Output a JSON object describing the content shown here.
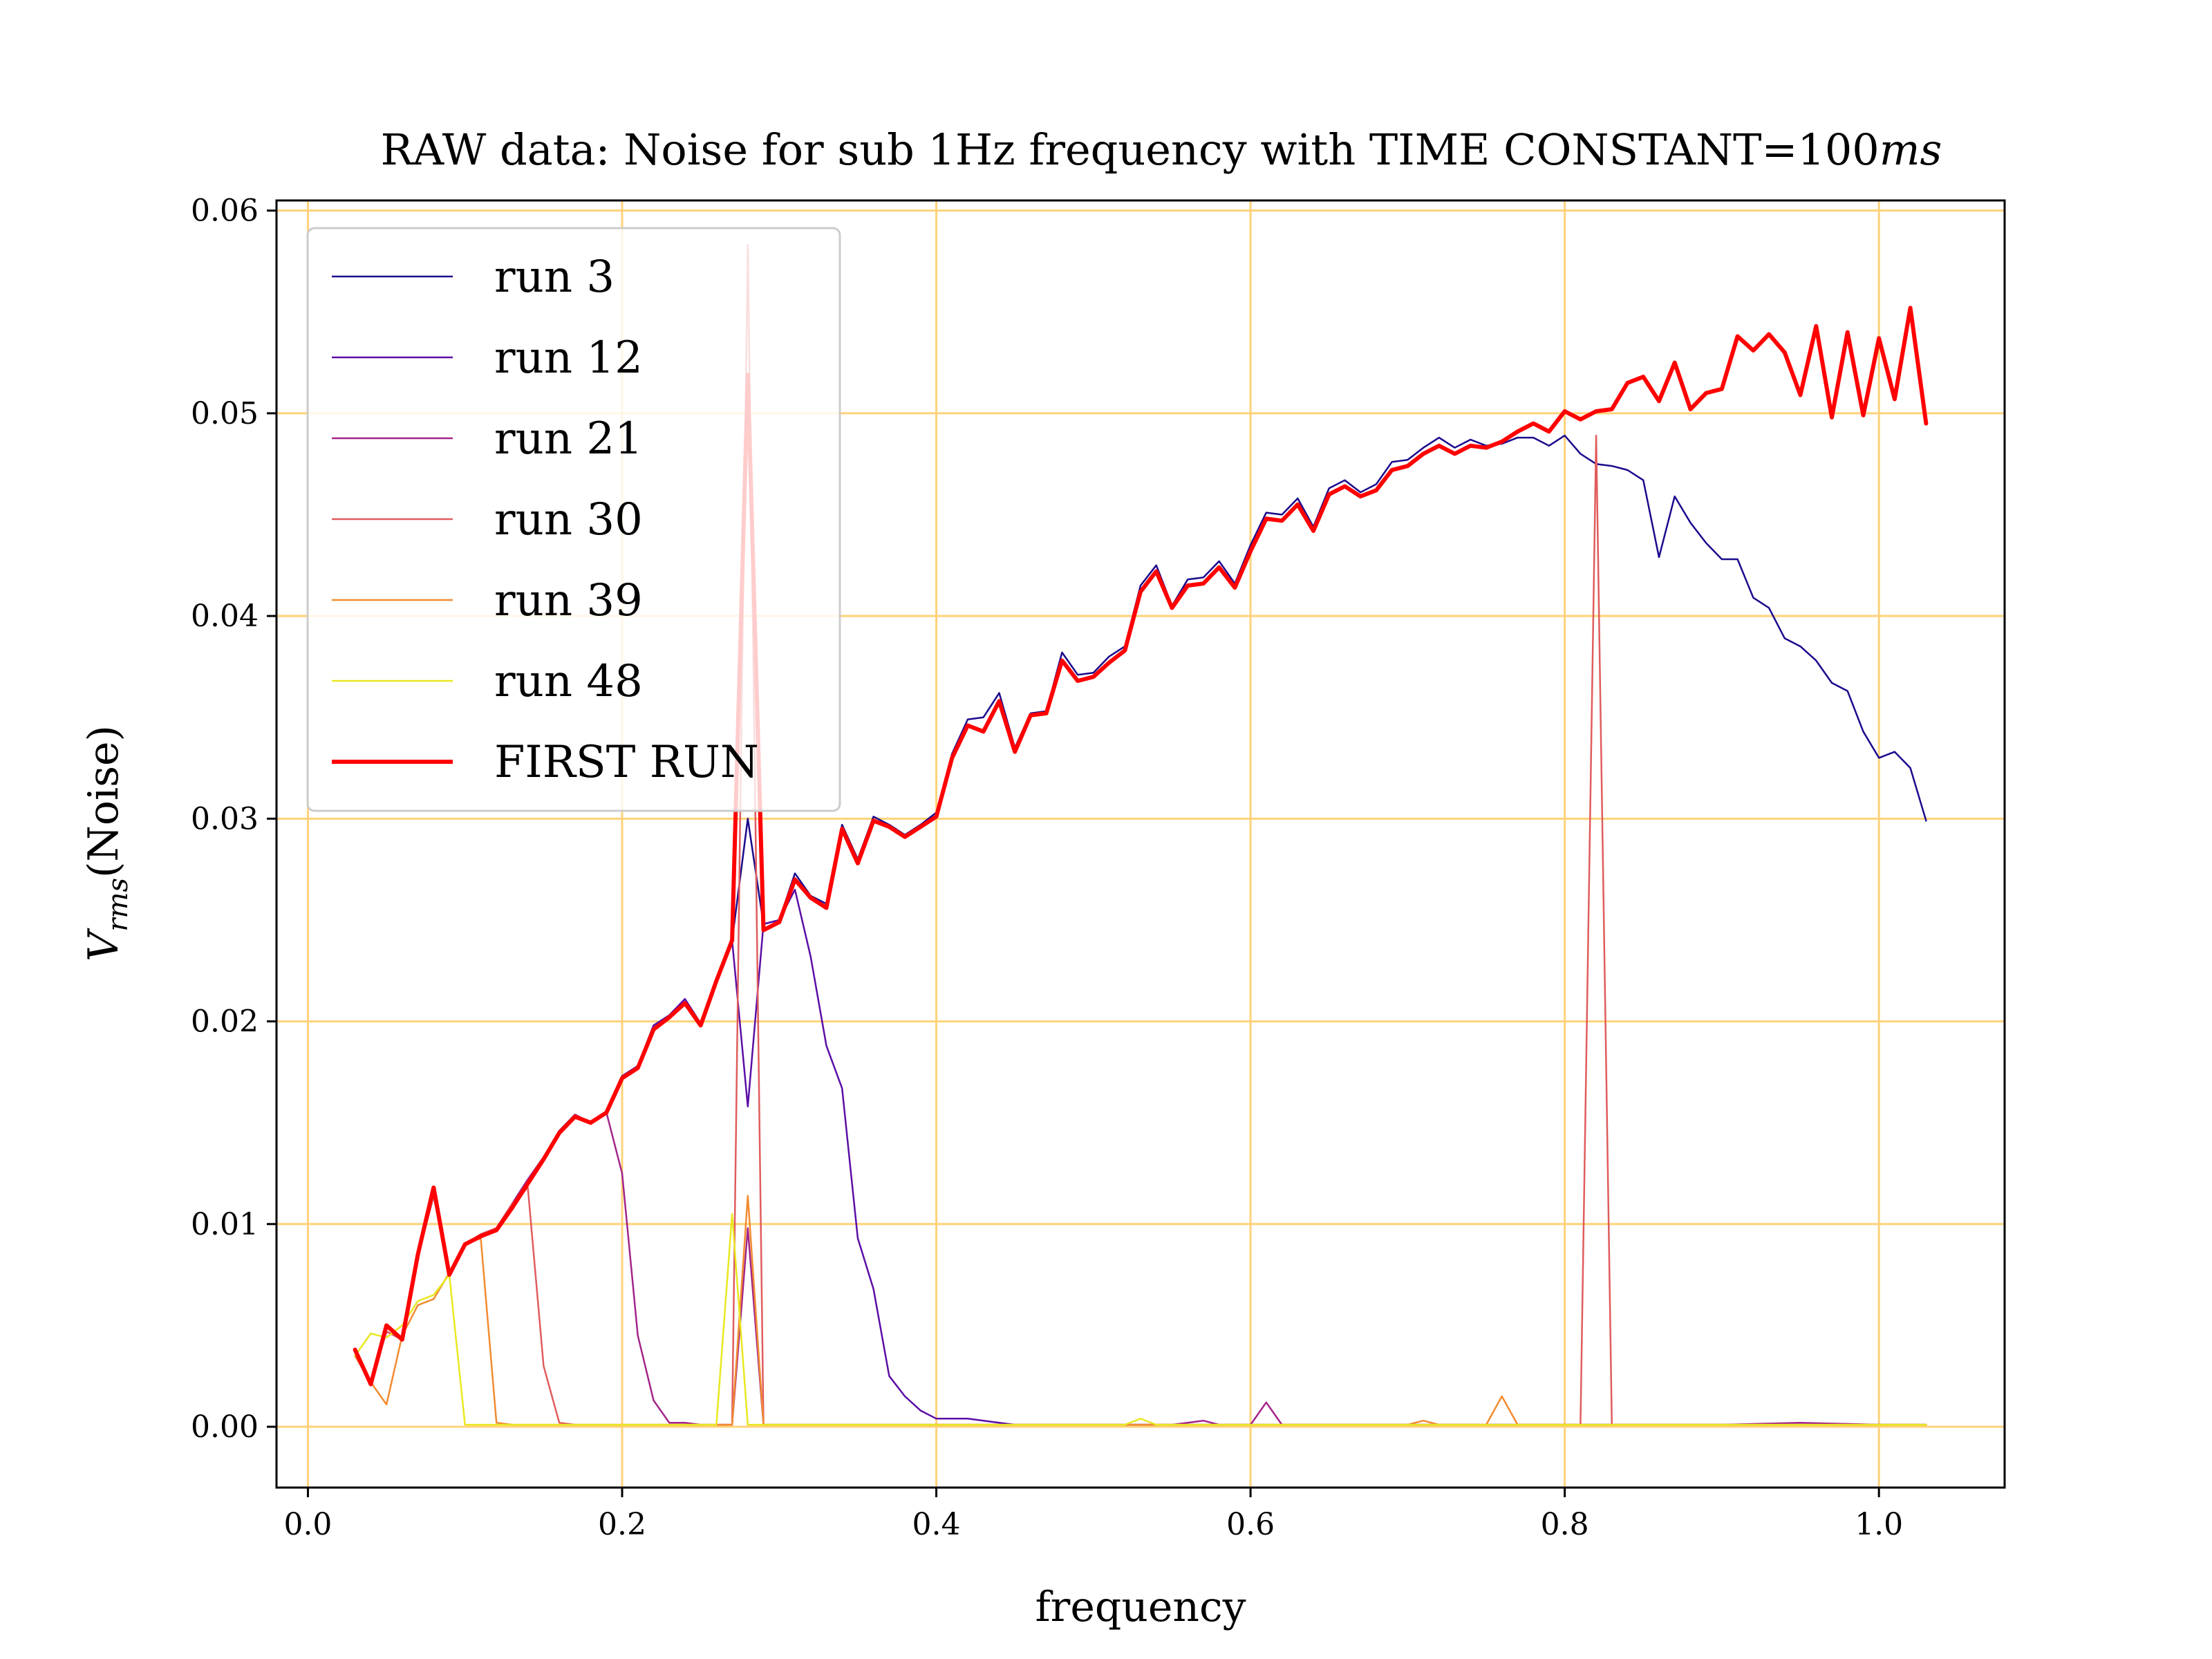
{
  "chart_data": {
    "type": "line",
    "title": "RAW data: Noise for sub 1Hz frequency with TIME CONSTANT=100ms",
    "xlabel": "frequency",
    "ylabel": "V_rms(Noise)",
    "xlim": [
      -0.02,
      1.08
    ],
    "ylim": [
      -0.003,
      0.0605
    ],
    "xticks": [
      "0.0",
      "0.2",
      "0.4",
      "0.6",
      "0.8",
      "1.0"
    ],
    "yticks": [
      "0.00",
      "0.01",
      "0.02",
      "0.03",
      "0.04",
      "0.05",
      "0.06"
    ],
    "grid": true,
    "grid_color": "#ffd27a",
    "legend_position": "upper-left",
    "series": [
      {
        "name": "run 3",
        "color": "#1a0a8c",
        "width": 2.5,
        "x": [
          0.03,
          0.04,
          0.05,
          0.06,
          0.07,
          0.08,
          0.09,
          0.1,
          0.11,
          0.12,
          0.13,
          0.14,
          0.15,
          0.16,
          0.17,
          0.18,
          0.19,
          0.2,
          0.21,
          0.22,
          0.23,
          0.24,
          0.25,
          0.26,
          0.27,
          0.28,
          0.29,
          0.3,
          0.31,
          0.32,
          0.33,
          0.34,
          0.35,
          0.36,
          0.37,
          0.38,
          0.39,
          0.4,
          0.41,
          0.42,
          0.43,
          0.44,
          0.45,
          0.46,
          0.47,
          0.48,
          0.49,
          0.5,
          0.51,
          0.52,
          0.53,
          0.54,
          0.55,
          0.56,
          0.57,
          0.58,
          0.59,
          0.6,
          0.61,
          0.62,
          0.63,
          0.64,
          0.65,
          0.66,
          0.67,
          0.68,
          0.69,
          0.7,
          0.71,
          0.72,
          0.73,
          0.74,
          0.75,
          0.76,
          0.77,
          0.78,
          0.79,
          0.8,
          0.81,
          0.82,
          0.83,
          0.84,
          0.85,
          0.86,
          0.87,
          0.88,
          0.89,
          0.9,
          0.91,
          0.92,
          0.93,
          0.94,
          0.95,
          0.96,
          0.97,
          0.98,
          0.99,
          1.0,
          1.01,
          1.02,
          1.03
        ],
        "y": [
          0.0035,
          0.0022,
          0.0047,
          0.0043,
          0.0084,
          0.0114,
          0.0076,
          0.009,
          0.0095,
          0.0098,
          0.011,
          0.0122,
          0.0133,
          0.0146,
          0.0154,
          0.015,
          0.0155,
          0.0173,
          0.0178,
          0.0198,
          0.0203,
          0.0211,
          0.0199,
          0.022,
          0.024,
          0.03,
          0.0248,
          0.025,
          0.0273,
          0.0262,
          0.0258,
          0.0297,
          0.028,
          0.0301,
          0.0297,
          0.0292,
          0.0297,
          0.0303,
          0.0332,
          0.0349,
          0.035,
          0.0362,
          0.0335,
          0.0352,
          0.0353,
          0.0382,
          0.0371,
          0.0372,
          0.038,
          0.0385,
          0.0415,
          0.0425,
          0.0405,
          0.0418,
          0.0419,
          0.0427,
          0.0416,
          0.0435,
          0.0451,
          0.045,
          0.0458,
          0.0444,
          0.0463,
          0.0467,
          0.0461,
          0.0465,
          0.0476,
          0.0477,
          0.0483,
          0.0488,
          0.0483,
          0.0487,
          0.0484,
          0.0485,
          0.0488,
          0.0488,
          0.0484,
          0.0489,
          0.048,
          0.0475,
          0.0474,
          0.0472,
          0.0467,
          0.0429,
          0.0459,
          0.0446,
          0.0436,
          0.0428,
          0.0428,
          0.0409,
          0.0404,
          0.0389,
          0.0385,
          0.0378,
          0.0367,
          0.0363,
          0.0343,
          0.033,
          0.0333,
          0.0325,
          0.0299
        ]
      },
      {
        "name": "run 12",
        "color": "#5b0ea6",
        "width": 2.5,
        "x": [
          0.03,
          0.04,
          0.05,
          0.06,
          0.07,
          0.08,
          0.09,
          0.1,
          0.11,
          0.12,
          0.13,
          0.14,
          0.15,
          0.16,
          0.17,
          0.18,
          0.19,
          0.2,
          0.21,
          0.22,
          0.23,
          0.24,
          0.25,
          0.26,
          0.27,
          0.28,
          0.29,
          0.3,
          0.31,
          0.32,
          0.33,
          0.34,
          0.35,
          0.36,
          0.37,
          0.38,
          0.39,
          0.4,
          0.41,
          0.42,
          0.43,
          0.44,
          0.45,
          0.46,
          0.47,
          0.48,
          0.5,
          0.55,
          0.6,
          0.65,
          0.7,
          0.75,
          0.8,
          0.85,
          0.9,
          0.95,
          1.0,
          1.03
        ],
        "y": [
          0.0035,
          0.0022,
          0.0047,
          0.0043,
          0.0084,
          0.0114,
          0.0076,
          0.009,
          0.0095,
          0.0098,
          0.011,
          0.0122,
          0.0133,
          0.0146,
          0.0154,
          0.015,
          0.0155,
          0.0173,
          0.0178,
          0.0198,
          0.0203,
          0.0211,
          0.0199,
          0.022,
          0.024,
          0.0158,
          0.0248,
          0.025,
          0.0265,
          0.0232,
          0.0188,
          0.0167,
          0.0093,
          0.0068,
          0.0025,
          0.0015,
          0.0008,
          0.0004,
          0.0004,
          0.0004,
          0.0003,
          0.0002,
          0.0001,
          0.0001,
          0.0001,
          0.0001,
          0.0001,
          0.0001,
          0.0001,
          0.0001,
          0.0001,
          0.0001,
          0.0001,
          0.0001,
          0.0001,
          0.0001,
          0.0001,
          0.0001
        ]
      },
      {
        "name": "run 21",
        "color": "#a3258a",
        "width": 2.5,
        "x": [
          0.03,
          0.04,
          0.05,
          0.06,
          0.07,
          0.08,
          0.09,
          0.1,
          0.11,
          0.12,
          0.13,
          0.14,
          0.15,
          0.16,
          0.17,
          0.18,
          0.19,
          0.2,
          0.21,
          0.22,
          0.23,
          0.24,
          0.25,
          0.26,
          0.27,
          0.28,
          0.29,
          0.3,
          0.35,
          0.4,
          0.45,
          0.5,
          0.55,
          0.57,
          0.58,
          0.6,
          0.61,
          0.62,
          0.65,
          0.7,
          0.75,
          0.8,
          0.85,
          0.9,
          0.95,
          1.0,
          1.03
        ],
        "y": [
          0.0035,
          0.0022,
          0.0047,
          0.0043,
          0.0084,
          0.0114,
          0.0076,
          0.009,
          0.0095,
          0.0098,
          0.011,
          0.0122,
          0.0133,
          0.0146,
          0.0154,
          0.015,
          0.0155,
          0.0125,
          0.0045,
          0.0013,
          0.0002,
          0.0002,
          0.0001,
          0.0001,
          0.0001,
          0.0098,
          0.0001,
          0.0001,
          0.0001,
          0.0001,
          0.0001,
          0.0001,
          0.0001,
          0.0003,
          0.0001,
          0.0001,
          0.0012,
          0.0001,
          0.0001,
          0.0001,
          0.0001,
          0.0001,
          0.0001,
          0.0001,
          0.0002,
          0.0001,
          0.0001
        ]
      },
      {
        "name": "run 30",
        "color": "#e05c5c",
        "width": 2.5,
        "x": [
          0.03,
          0.04,
          0.05,
          0.06,
          0.07,
          0.08,
          0.09,
          0.1,
          0.11,
          0.12,
          0.13,
          0.14,
          0.15,
          0.16,
          0.17,
          0.18,
          0.2,
          0.25,
          0.27,
          0.28,
          0.29,
          0.3,
          0.35,
          0.4,
          0.45,
          0.5,
          0.55,
          0.6,
          0.65,
          0.7,
          0.75,
          0.8,
          0.81,
          0.82,
          0.83,
          0.85,
          0.9,
          0.95,
          1.0,
          1.03
        ],
        "y": [
          0.0035,
          0.0022,
          0.0047,
          0.0043,
          0.0084,
          0.0114,
          0.0076,
          0.009,
          0.0095,
          0.0098,
          0.011,
          0.0118,
          0.003,
          0.0002,
          0.0001,
          0.0001,
          0.0001,
          0.0001,
          0.0001,
          0.0583,
          0.0001,
          0.0001,
          0.0001,
          0.0001,
          0.0001,
          0.0001,
          0.0001,
          0.0001,
          0.0001,
          0.0001,
          0.0001,
          0.0001,
          0.0001,
          0.0489,
          0.0001,
          0.0001,
          0.0001,
          0.0001,
          0.0001,
          0.0001
        ]
      },
      {
        "name": "run 39",
        "color": "#f28b30",
        "width": 2.5,
        "x": [
          0.03,
          0.04,
          0.05,
          0.06,
          0.07,
          0.08,
          0.09,
          0.1,
          0.11,
          0.12,
          0.13,
          0.15,
          0.2,
          0.25,
          0.27,
          0.28,
          0.29,
          0.3,
          0.35,
          0.4,
          0.45,
          0.5,
          0.55,
          0.6,
          0.65,
          0.7,
          0.71,
          0.72,
          0.75,
          0.76,
          0.77,
          0.8,
          0.85,
          0.9,
          0.95,
          1.0,
          1.03
        ],
        "y": [
          0.0035,
          0.0022,
          0.0011,
          0.0045,
          0.006,
          0.0063,
          0.0076,
          0.009,
          0.0093,
          0.0002,
          0.0001,
          0.0001,
          0.0001,
          0.0001,
          0.0001,
          0.0114,
          0.0001,
          0.0001,
          0.0001,
          0.0001,
          0.0001,
          0.0001,
          0.0001,
          0.0001,
          0.0001,
          0.0001,
          0.0003,
          0.0001,
          0.0001,
          0.0015,
          0.0001,
          0.0001,
          0.0001,
          0.0001,
          0.0001,
          0.0001,
          0.0001
        ]
      },
      {
        "name": "run 48",
        "color": "#e8e820",
        "width": 2.5,
        "x": [
          0.03,
          0.04,
          0.05,
          0.06,
          0.07,
          0.08,
          0.09,
          0.1,
          0.11,
          0.12,
          0.15,
          0.2,
          0.25,
          0.26,
          0.27,
          0.28,
          0.29,
          0.3,
          0.35,
          0.4,
          0.45,
          0.5,
          0.52,
          0.53,
          0.54,
          0.55,
          0.6,
          0.65,
          0.7,
          0.75,
          0.8,
          0.85,
          0.9,
          0.95,
          1.0,
          1.03
        ],
        "y": [
          0.0035,
          0.0046,
          0.0044,
          0.005,
          0.0062,
          0.0065,
          0.0075,
          0.0001,
          0.0001,
          0.0001,
          0.0001,
          0.0001,
          0.0001,
          0.0001,
          0.0105,
          0.0001,
          0.0001,
          0.0001,
          0.0001,
          0.0001,
          0.0001,
          0.0001,
          0.0001,
          0.0004,
          0.0001,
          0.0001,
          0.0001,
          0.0001,
          0.0001,
          0.0001,
          0.0001,
          0.0001,
          0.0001,
          0.0001,
          0.0001,
          0.0001
        ]
      },
      {
        "name": "FIRST RUN",
        "color": "#ff0000",
        "width": 6,
        "x": [
          0.03,
          0.04,
          0.05,
          0.06,
          0.07,
          0.08,
          0.09,
          0.1,
          0.11,
          0.12,
          0.13,
          0.14,
          0.15,
          0.16,
          0.17,
          0.18,
          0.19,
          0.2,
          0.21,
          0.22,
          0.23,
          0.24,
          0.25,
          0.26,
          0.27,
          0.28,
          0.29,
          0.3,
          0.31,
          0.32,
          0.33,
          0.34,
          0.35,
          0.36,
          0.37,
          0.38,
          0.39,
          0.4,
          0.41,
          0.42,
          0.43,
          0.44,
          0.45,
          0.46,
          0.47,
          0.48,
          0.49,
          0.5,
          0.51,
          0.52,
          0.53,
          0.54,
          0.55,
          0.56,
          0.57,
          0.58,
          0.59,
          0.6,
          0.61,
          0.62,
          0.63,
          0.64,
          0.65,
          0.66,
          0.67,
          0.68,
          0.69,
          0.7,
          0.71,
          0.72,
          0.73,
          0.74,
          0.75,
          0.76,
          0.77,
          0.78,
          0.79,
          0.8,
          0.81,
          0.82,
          0.83,
          0.84,
          0.85,
          0.86,
          0.87,
          0.88,
          0.89,
          0.9,
          0.91,
          0.92,
          0.93,
          0.94,
          0.95,
          0.96,
          0.97,
          0.98,
          0.99,
          1.0,
          1.01,
          1.02,
          1.03
        ],
        "y": [
          0.0038,
          0.0021,
          0.005,
          0.0043,
          0.0085,
          0.0118,
          0.0075,
          0.009,
          0.0094,
          0.0097,
          0.0108,
          0.012,
          0.0132,
          0.0145,
          0.0153,
          0.015,
          0.0155,
          0.0172,
          0.0177,
          0.0196,
          0.0202,
          0.0209,
          0.0198,
          0.022,
          0.024,
          0.0519,
          0.0245,
          0.0249,
          0.027,
          0.0261,
          0.0256,
          0.0295,
          0.0278,
          0.0299,
          0.0296,
          0.0291,
          0.0296,
          0.0301,
          0.033,
          0.0346,
          0.0343,
          0.0358,
          0.0333,
          0.0351,
          0.0352,
          0.0378,
          0.0368,
          0.037,
          0.0377,
          0.0383,
          0.0412,
          0.0422,
          0.0404,
          0.0415,
          0.0416,
          0.0424,
          0.0414,
          0.0432,
          0.0448,
          0.0447,
          0.0455,
          0.0442,
          0.046,
          0.0464,
          0.0459,
          0.0462,
          0.0472,
          0.0474,
          0.048,
          0.0484,
          0.048,
          0.0484,
          0.0483,
          0.0486,
          0.0491,
          0.0495,
          0.0491,
          0.0501,
          0.0497,
          0.0501,
          0.0502,
          0.0515,
          0.0518,
          0.0506,
          0.0525,
          0.0502,
          0.051,
          0.0512,
          0.0538,
          0.0531,
          0.0539,
          0.053,
          0.0509,
          0.0543,
          0.0498,
          0.054,
          0.0499,
          0.0537,
          0.0507,
          0.0552,
          0.0495
        ]
      }
    ]
  }
}
